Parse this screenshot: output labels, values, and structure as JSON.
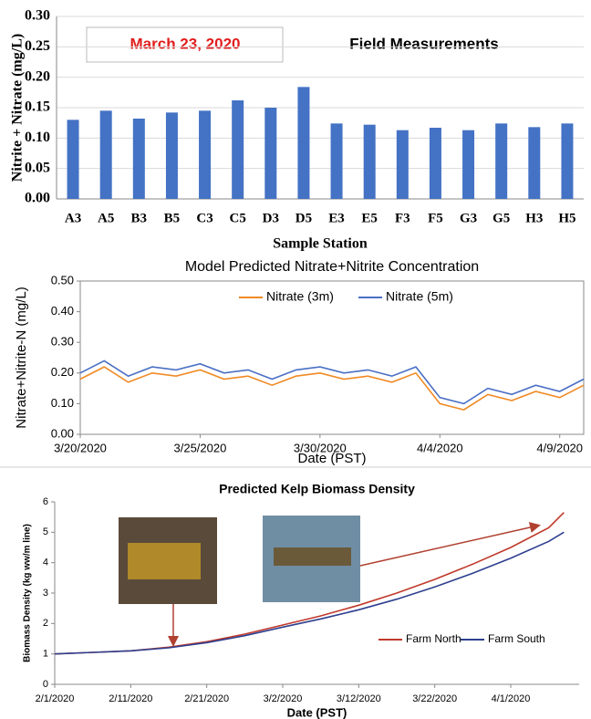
{
  "chart_data": [
    {
      "type": "bar",
      "xlabel": "Sample Station",
      "ylabel": "Nitrite + Nitrate (mg/L)",
      "annotations": [
        "March 23, 2020",
        "Field Measurements"
      ],
      "categories": [
        "A3",
        "A5",
        "B3",
        "B5",
        "C3",
        "C5",
        "D3",
        "D5",
        "E3",
        "E5",
        "F3",
        "F5",
        "G3",
        "G5",
        "H3",
        "H5"
      ],
      "values": [
        0.13,
        0.145,
        0.132,
        0.142,
        0.145,
        0.162,
        0.15,
        0.184,
        0.124,
        0.122,
        0.113,
        0.117,
        0.113,
        0.124,
        0.118,
        0.124
      ],
      "color": "#4472c4",
      "grid": true,
      "ylim": [
        0,
        0.3
      ],
      "yticks": [
        {
          "value": 0,
          "label": "0.00"
        },
        {
          "value": 0.05,
          "label": "0.05"
        },
        {
          "value": 0.1,
          "label": "0.10"
        },
        {
          "value": 0.15,
          "label": "0.15"
        },
        {
          "value": 0.2,
          "label": "0.20"
        },
        {
          "value": 0.25,
          "label": "0.25"
        },
        {
          "value": 0.3,
          "label": "0.30"
        }
      ]
    },
    {
      "type": "line",
      "title": "Model Predicted Nitrate+Nitrite Concentration",
      "xlabel": "Date (PST)",
      "ylabel": "Nitrate+Nitrite-N (mg/L)",
      "x": [
        "3/20/2020",
        "3/21/2020",
        "3/22/2020",
        "3/23/2020",
        "3/24/2020",
        "3/25/2020",
        "3/26/2020",
        "3/27/2020",
        "3/28/2020",
        "3/29/2020",
        "3/30/2020",
        "3/31/2020",
        "4/1/2020",
        "4/2/2020",
        "4/3/2020",
        "4/4/2020",
        "4/5/2020",
        "4/6/2020",
        "4/7/2020",
        "4/8/2020",
        "4/9/2020",
        "4/10/2020"
      ],
      "series": [
        {
          "name": "Nitrate (3m)",
          "color": "#f08a24",
          "values": [
            0.18,
            0.22,
            0.17,
            0.2,
            0.19,
            0.21,
            0.18,
            0.19,
            0.16,
            0.19,
            0.2,
            0.18,
            0.19,
            0.17,
            0.2,
            0.1,
            0.08,
            0.13,
            0.11,
            0.14,
            0.12,
            0.16
          ]
        },
        {
          "name": "Nitrate (5m)",
          "color": "#4a6fc4",
          "values": [
            0.2,
            0.24,
            0.19,
            0.22,
            0.21,
            0.23,
            0.2,
            0.21,
            0.18,
            0.21,
            0.22,
            0.2,
            0.21,
            0.19,
            0.22,
            0.12,
            0.1,
            0.15,
            0.13,
            0.16,
            0.14,
            0.18
          ]
        }
      ],
      "xlim": [
        "3/20/2020",
        "4/10/2020"
      ],
      "xticks": [
        "3/20/2020",
        "3/25/2020",
        "3/30/2020",
        "4/4/2020",
        "4/9/2020"
      ],
      "ylim": [
        0,
        0.5
      ],
      "yticks": [
        {
          "value": 0,
          "label": "0.00"
        },
        {
          "value": 0.1,
          "label": "0.10"
        },
        {
          "value": 0.2,
          "label": "0.20"
        },
        {
          "value": 0.3,
          "label": "0.30"
        },
        {
          "value": 0.4,
          "label": "0.40"
        },
        {
          "value": 0.5,
          "label": "0.50"
        }
      ],
      "grid": false,
      "legend": "upper center"
    },
    {
      "type": "line",
      "title": "Predicted Kelp Biomass Density",
      "xlabel": "Date (PST)",
      "ylabel": "Biomass Density (kg ww/m line)",
      "x": [
        "2/1/2020",
        "2/6/2020",
        "2/11/2020",
        "2/16/2020",
        "2/21/2020",
        "2/26/2020",
        "3/2/2020",
        "3/7/2020",
        "3/12/2020",
        "3/17/2020",
        "3/22/2020",
        "3/27/2020",
        "4/1/2020",
        "4/6/2020",
        "4/8/2020"
      ],
      "series": [
        {
          "name": "Farm North",
          "color": "#c0392b",
          "values": [
            1.0,
            1.05,
            1.1,
            1.22,
            1.4,
            1.65,
            1.95,
            2.25,
            2.6,
            3.0,
            3.45,
            3.95,
            4.5,
            5.15,
            5.65
          ]
        },
        {
          "name": "Farm South",
          "color": "#2e3f8f",
          "values": [
            1.0,
            1.05,
            1.1,
            1.2,
            1.37,
            1.6,
            1.88,
            2.15,
            2.45,
            2.8,
            3.2,
            3.65,
            4.15,
            4.7,
            5.0
          ]
        }
      ],
      "xlim": [
        "2/1/2020",
        "4/10/2020"
      ],
      "xticks": [
        "2/1/2020",
        "2/11/2020",
        "2/21/2020",
        "3/2/2020",
        "3/12/2020",
        "3/22/2020",
        "4/1/2020"
      ],
      "ylim": [
        0,
        6
      ],
      "yticks": [
        0,
        1,
        2,
        3,
        4,
        5,
        6
      ],
      "grid": false,
      "legend": "lower right"
    }
  ]
}
